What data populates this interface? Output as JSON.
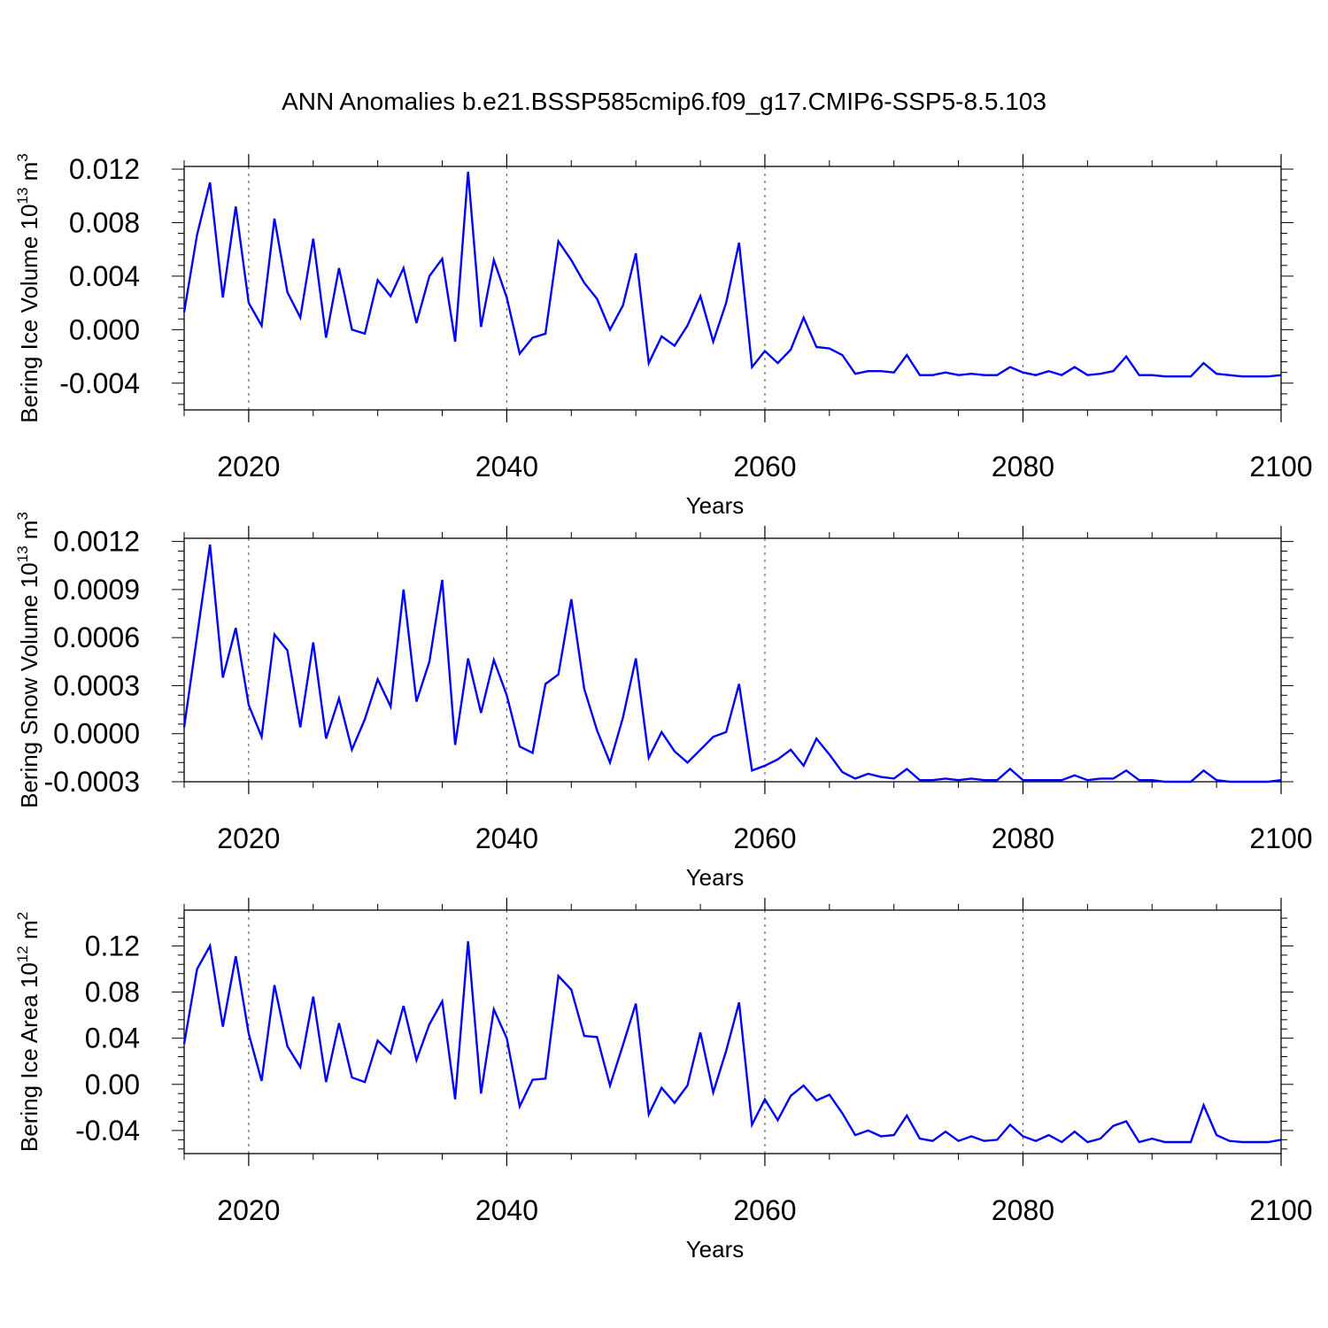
{
  "title": "ANN Anomalies b.e21.BSSP585cmip6.f09_g17.CMIP6-SSP5-8.5.103",
  "line_color": "#0000ff",
  "grid_color": "#666666",
  "chart_data": [
    {
      "type": "line",
      "xlabel": "Years",
      "ylabel": "Bering Ice Volume 10",
      "ylabel_exp": "13",
      "ylabel_unit": "m",
      "ylabel_unit_exp": "3",
      "xlim": [
        2015,
        2100
      ],
      "ylim": [
        -0.006,
        0.0122
      ],
      "xticks": [
        2020,
        2040,
        2060,
        2080,
        2100
      ],
      "yticks": [
        -0.004,
        0.0,
        0.004,
        0.008,
        0.012
      ],
      "ytick_labels": [
        "-0.004",
        "0.000",
        "0.004",
        "0.008",
        "0.012"
      ],
      "x": [
        2015,
        2016,
        2017,
        2018,
        2019,
        2020,
        2021,
        2022,
        2023,
        2024,
        2025,
        2026,
        2027,
        2028,
        2029,
        2030,
        2031,
        2032,
        2033,
        2034,
        2035,
        2036,
        2037,
        2038,
        2039,
        2040,
        2041,
        2042,
        2043,
        2044,
        2045,
        2046,
        2047,
        2048,
        2049,
        2050,
        2051,
        2052,
        2053,
        2054,
        2055,
        2056,
        2057,
        2058,
        2059,
        2060,
        2061,
        2062,
        2063,
        2064,
        2065,
        2066,
        2067,
        2068,
        2069,
        2070,
        2071,
        2072,
        2073,
        2074,
        2075,
        2076,
        2077,
        2078,
        2079,
        2080,
        2081,
        2082,
        2083,
        2084,
        2085,
        2086,
        2087,
        2088,
        2089,
        2090,
        2091,
        2092,
        2093,
        2094,
        2095,
        2096,
        2097,
        2098,
        2099,
        2100
      ],
      "values": [
        0.0013,
        0.0071,
        0.011,
        0.0024,
        0.0092,
        0.002,
        0.0003,
        0.0083,
        0.0028,
        0.0009,
        0.0068,
        -0.0006,
        0.0046,
        0.0,
        -0.0003,
        0.0037,
        0.0025,
        0.0046,
        0.0005,
        0.004,
        0.0053,
        -0.0009,
        0.0118,
        0.0002,
        0.0052,
        0.0024,
        -0.0018,
        -0.0006,
        -0.0003,
        0.0066,
        0.0052,
        0.0035,
        0.0023,
        0.0,
        0.0018,
        0.0057,
        -0.0025,
        -0.0005,
        -0.0012,
        0.0003,
        0.0025,
        -0.0009,
        0.002,
        0.0065,
        -0.0028,
        -0.0016,
        -0.0025,
        -0.0015,
        0.0009,
        -0.0013,
        -0.0014,
        -0.0019,
        -0.0033,
        -0.0031,
        -0.0031,
        -0.0032,
        -0.0019,
        -0.0034,
        -0.0034,
        -0.0032,
        -0.0034,
        -0.0033,
        -0.0034,
        -0.0034,
        -0.0028,
        -0.0032,
        -0.0034,
        -0.0031,
        -0.0034,
        -0.0028,
        -0.0034,
        -0.0033,
        -0.0031,
        -0.002,
        -0.0034,
        -0.0034,
        -0.0035,
        -0.0035,
        -0.0035,
        -0.0025,
        -0.0033,
        -0.0034,
        -0.0035,
        -0.0035,
        -0.0035,
        -0.0034
      ]
    },
    {
      "type": "line",
      "xlabel": "Years",
      "ylabel": "Bering Snow Volume 10",
      "ylabel_exp": "13",
      "ylabel_unit": "m",
      "ylabel_unit_exp": "3",
      "xlim": [
        2015,
        2100
      ],
      "ylim": [
        -0.0003,
        0.00122
      ],
      "xticks": [
        2020,
        2040,
        2060,
        2080,
        2100
      ],
      "yticks": [
        -0.0003,
        0.0,
        0.0003,
        0.0006,
        0.0009,
        0.0012
      ],
      "ytick_labels": [
        "-0.0003",
        "0.0000",
        "0.0003",
        "0.0006",
        "0.0009",
        "0.0012"
      ],
      "x": [
        2015,
        2016,
        2017,
        2018,
        2019,
        2020,
        2021,
        2022,
        2023,
        2024,
        2025,
        2026,
        2027,
        2028,
        2029,
        2030,
        2031,
        2032,
        2033,
        2034,
        2035,
        2036,
        2037,
        2038,
        2039,
        2040,
        2041,
        2042,
        2043,
        2044,
        2045,
        2046,
        2047,
        2048,
        2049,
        2050,
        2051,
        2052,
        2053,
        2054,
        2055,
        2056,
        2057,
        2058,
        2059,
        2060,
        2061,
        2062,
        2063,
        2064,
        2065,
        2066,
        2067,
        2068,
        2069,
        2070,
        2071,
        2072,
        2073,
        2074,
        2075,
        2076,
        2077,
        2078,
        2079,
        2080,
        2081,
        2082,
        2083,
        2084,
        2085,
        2086,
        2087,
        2088,
        2089,
        2090,
        2091,
        2092,
        2093,
        2094,
        2095,
        2096,
        2097,
        2098,
        2099,
        2100
      ],
      "values": [
        4e-05,
        0.00061,
        0.00118,
        0.00035,
        0.00066,
        0.00018,
        -2e-05,
        0.00062,
        0.00052,
        4e-05,
        0.00057,
        -3e-05,
        0.00022,
        -0.0001,
        9e-05,
        0.00034,
        0.00017,
        0.0009,
        0.0002,
        0.00045,
        0.00096,
        -7e-05,
        0.00047,
        0.00013,
        0.00046,
        0.00024,
        -8e-05,
        -0.00012,
        0.00031,
        0.00037,
        0.00084,
        0.00028,
        2e-05,
        -0.00018,
        0.0001,
        0.00047,
        -0.00015,
        1e-05,
        -0.00011,
        -0.00018,
        -0.0001,
        -2e-05,
        1e-05,
        0.00031,
        -0.00023,
        -0.0002,
        -0.00016,
        -0.0001,
        -0.0002,
        -3e-05,
        -0.00013,
        -0.00024,
        -0.00028,
        -0.00025,
        -0.00027,
        -0.00028,
        -0.00022,
        -0.00029,
        -0.00029,
        -0.00028,
        -0.00029,
        -0.00028,
        -0.00029,
        -0.00029,
        -0.00022,
        -0.00029,
        -0.00029,
        -0.00029,
        -0.00029,
        -0.00026,
        -0.00029,
        -0.00028,
        -0.00028,
        -0.00023,
        -0.00029,
        -0.00029,
        -0.0003,
        -0.0003,
        -0.0003,
        -0.00023,
        -0.00029,
        -0.0003,
        -0.0003,
        -0.0003,
        -0.0003,
        -0.00029
      ]
    },
    {
      "type": "line",
      "xlabel": "Years",
      "ylabel": "Bering Ice Area 10",
      "ylabel_exp": "12",
      "ylabel_unit": "m",
      "ylabel_unit_exp": "2",
      "xlim": [
        2015,
        2100
      ],
      "ylim": [
        -0.06,
        0.151
      ],
      "xticks": [
        2020,
        2040,
        2060,
        2080,
        2100
      ],
      "yticks": [
        -0.04,
        0.0,
        0.04,
        0.08,
        0.12
      ],
      "ytick_labels": [
        "-0.04",
        "0.00",
        "0.04",
        "0.08",
        "0.12"
      ],
      "x": [
        2015,
        2016,
        2017,
        2018,
        2019,
        2020,
        2021,
        2022,
        2023,
        2024,
        2025,
        2026,
        2027,
        2028,
        2029,
        2030,
        2031,
        2032,
        2033,
        2034,
        2035,
        2036,
        2037,
        2038,
        2039,
        2040,
        2041,
        2042,
        2043,
        2044,
        2045,
        2046,
        2047,
        2048,
        2049,
        2050,
        2051,
        2052,
        2053,
        2054,
        2055,
        2056,
        2057,
        2058,
        2059,
        2060,
        2061,
        2062,
        2063,
        2064,
        2065,
        2066,
        2067,
        2068,
        2069,
        2070,
        2071,
        2072,
        2073,
        2074,
        2075,
        2076,
        2077,
        2078,
        2079,
        2080,
        2081,
        2082,
        2083,
        2084,
        2085,
        2086,
        2087,
        2088,
        2089,
        2090,
        2091,
        2092,
        2093,
        2094,
        2095,
        2096,
        2097,
        2098,
        2099,
        2100
      ],
      "values": [
        0.035,
        0.1,
        0.12,
        0.05,
        0.111,
        0.044,
        0.003,
        0.086,
        0.033,
        0.015,
        0.076,
        0.002,
        0.053,
        0.006,
        0.002,
        0.038,
        0.027,
        0.068,
        0.021,
        0.052,
        0.072,
        -0.013,
        0.124,
        -0.008,
        0.065,
        0.04,
        -0.019,
        0.004,
        0.005,
        0.094,
        0.082,
        0.042,
        0.041,
        -0.001,
        0.034,
        0.07,
        -0.026,
        -0.003,
        -0.016,
        -0.001,
        0.045,
        -0.007,
        0.029,
        0.071,
        -0.035,
        -0.013,
        -0.031,
        -0.01,
        -0.001,
        -0.014,
        -0.009,
        -0.025,
        -0.044,
        -0.04,
        -0.045,
        -0.044,
        -0.027,
        -0.047,
        -0.049,
        -0.041,
        -0.049,
        -0.045,
        -0.049,
        -0.048,
        -0.035,
        -0.045,
        -0.049,
        -0.044,
        -0.05,
        -0.041,
        -0.05,
        -0.047,
        -0.036,
        -0.032,
        -0.05,
        -0.047,
        -0.05,
        -0.05,
        -0.05,
        -0.018,
        -0.044,
        -0.049,
        -0.05,
        -0.05,
        -0.05,
        -0.048
      ]
    }
  ]
}
